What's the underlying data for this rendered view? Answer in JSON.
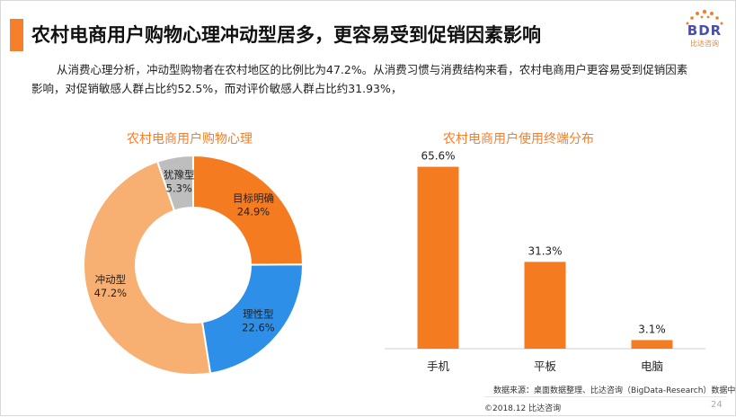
{
  "header": {
    "title": "农村电商用户购物心理冲动型居多，更容易受到促销因素影响",
    "intro": "从消费心理分析，冲动型购物者在农村地区的比例比为47.2%。从消费习惯与消费结构来看，农村电商用户更容易受到促销因素影响，对促销敏感人群占比约52.5%，而对评价敏感人群占比约31.93%，"
  },
  "logo": {
    "text": "BDR",
    "sub": "比达咨询"
  },
  "chart_data": [
    {
      "type": "pie",
      "title": "农村电商用户购物心理",
      "slices": [
        {
          "label": "目标明确",
          "value": 24.9,
          "display": "24.9%",
          "color": "#F47B20"
        },
        {
          "label": "理性型",
          "value": 22.6,
          "display": "22.6%",
          "color": "#2E8FE8"
        },
        {
          "label": "冲动型",
          "value": 47.2,
          "display": "47.2%",
          "color": "#F8B072"
        },
        {
          "label": "犹豫型",
          "value": 5.3,
          "display": "5.3%",
          "color": "#BEBEBE"
        }
      ]
    },
    {
      "type": "bar",
      "title": "农村电商用户使用终端分布",
      "categories": [
        "手机",
        "平板",
        "电脑"
      ],
      "values": [
        65.6,
        31.3,
        3.1
      ],
      "value_labels": [
        "65.6%",
        "31.3%",
        "3.1%"
      ],
      "color": "#F47B20",
      "ylim": [
        0,
        70
      ]
    }
  ],
  "footer": {
    "source": "数据来源：桌面数据整理、比达咨询（BigData-Research）数据中心",
    "copyright": "©2018.12 比达咨询",
    "page": "24"
  }
}
